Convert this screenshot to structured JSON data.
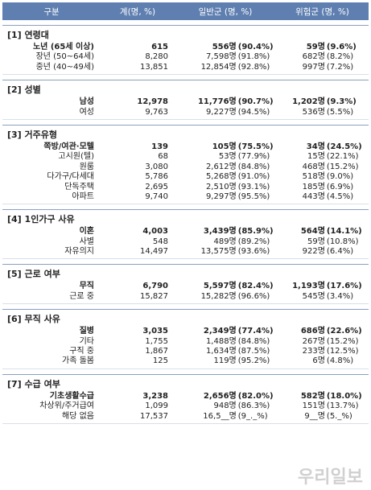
{
  "header": {
    "col1": "구분",
    "col2": "계(명, %)",
    "col3": "일반군 (명, %)",
    "col4": "위험군 (명, %)"
  },
  "sections": [
    {
      "title": "[1] 연령대",
      "rows": [
        {
          "label": "노년 (65세 이상)",
          "total": "615",
          "gen_n": "556명",
          "gen_p": "(90.4%)",
          "risk_n": "59명",
          "risk_p": "(9.6%)",
          "bold": true
        },
        {
          "label": "장년 (50~64세)",
          "total": "8,280",
          "gen_n": "7,598명",
          "gen_p": "(91.8%)",
          "risk_n": "682명",
          "risk_p": "(8.2%)"
        },
        {
          "label": "중년 (40~49세)",
          "total": "13,851",
          "gen_n": "12,854명",
          "gen_p": "(92.8%)",
          "risk_n": "997명",
          "risk_p": "(7.2%)"
        }
      ]
    },
    {
      "title": "[2] 성별",
      "rows": [
        {
          "label": "남성",
          "total": "12,978",
          "gen_n": "11,776명",
          "gen_p": "(90.7%)",
          "risk_n": "1,202명",
          "risk_p": "(9.3%)",
          "bold": true
        },
        {
          "label": "여성",
          "total": "9,763",
          "gen_n": "9,227명",
          "gen_p": "(94.5%)",
          "risk_n": "536명",
          "risk_p": "(5.5%)"
        }
      ]
    },
    {
      "title": "[3] 거주유형",
      "rows": [
        {
          "label": "쪽방/여관·모텔",
          "total": "139",
          "gen_n": "105명",
          "gen_p": "(75.5%)",
          "risk_n": "34명",
          "risk_p": "(24.5%)",
          "bold": true
        },
        {
          "label": "고시원(텔)",
          "total": "68",
          "gen_n": "53명",
          "gen_p": "(77.9%)",
          "risk_n": "15명",
          "risk_p": "(22.1%)"
        },
        {
          "label": "원룸",
          "total": "3,080",
          "gen_n": "2,612명",
          "gen_p": "(84.8%)",
          "risk_n": "468명",
          "risk_p": "(15.2%)"
        },
        {
          "label": "다가구/다세대",
          "total": "5,786",
          "gen_n": "5,268명",
          "gen_p": "(91.0%)",
          "risk_n": "518명",
          "risk_p": "(9.0%)"
        },
        {
          "label": "단독주택",
          "total": "2,695",
          "gen_n": "2,510명",
          "gen_p": "(93.1%)",
          "risk_n": "185명",
          "risk_p": "(6.9%)"
        },
        {
          "label": "아파트",
          "total": "9,740",
          "gen_n": "9,297명",
          "gen_p": "(95.5%)",
          "risk_n": "443명",
          "risk_p": "(4.5%)"
        }
      ]
    },
    {
      "title": "[4] 1인가구 사유",
      "rows": [
        {
          "label": "이혼",
          "total": "4,003",
          "gen_n": "3,439명",
          "gen_p": "(85.9%)",
          "risk_n": "564명",
          "risk_p": "(14.1%)",
          "bold": true
        },
        {
          "label": "사별",
          "total": "548",
          "gen_n": "489명",
          "gen_p": "(89.2%)",
          "risk_n": "59명",
          "risk_p": "(10.8%)"
        },
        {
          "label": "자유의지",
          "total": "14,497",
          "gen_n": "13,575명",
          "gen_p": "(93.6%)",
          "risk_n": "922명",
          "risk_p": "(6.4%)"
        }
      ]
    },
    {
      "title": "[5] 근로 여부",
      "rows": [
        {
          "label": "무직",
          "total": "6,790",
          "gen_n": "5,597명",
          "gen_p": "(82.4%)",
          "risk_n": "1,193명",
          "risk_p": "(17.6%)",
          "bold": true
        },
        {
          "label": "근로 중",
          "total": "15,827",
          "gen_n": "15,282명",
          "gen_p": "(96.6%)",
          "risk_n": "545명",
          "risk_p": "(3.4%)"
        }
      ]
    },
    {
      "title": "[6] 무직 사유",
      "rows": [
        {
          "label": "질병",
          "total": "3,035",
          "gen_n": "2,349명",
          "gen_p": "(77.4%)",
          "risk_n": "686명",
          "risk_p": "(22.6%)",
          "bold": true
        },
        {
          "label": "기타",
          "total": "1,755",
          "gen_n": "1,488명",
          "gen_p": "(84.8%)",
          "risk_n": "267명",
          "risk_p": "(15.2%)"
        },
        {
          "label": "구직 중",
          "total": "1,867",
          "gen_n": "1,634명",
          "gen_p": "(87.5%)",
          "risk_n": "233명",
          "risk_p": "(12.5%)"
        },
        {
          "label": "가족 돌봄",
          "total": "125",
          "gen_n": "119명",
          "gen_p": "(95.2%)",
          "risk_n": "6명",
          "risk_p": "(4.8%)"
        }
      ]
    },
    {
      "title": "[7] 수급 여부",
      "rows": [
        {
          "label": "기초생활수급",
          "total": "3,238",
          "gen_n": "2,656명",
          "gen_p": "(82.0%)",
          "risk_n": "582명",
          "risk_p": "(18.0%)",
          "bold": true
        },
        {
          "label": "차상위/주거급여",
          "total": "1,099",
          "gen_n": "948명",
          "gen_p": "(86.3%)",
          "risk_n": "151명",
          "risk_p": "(13.7%)"
        },
        {
          "label": "해당 없음",
          "total": "17,537",
          "gen_n": "16,5__명",
          "gen_p": "(9_._%)",
          "risk_n": "9__명",
          "risk_p": "(5._%)"
        }
      ]
    }
  ],
  "watermark": "우리일보"
}
